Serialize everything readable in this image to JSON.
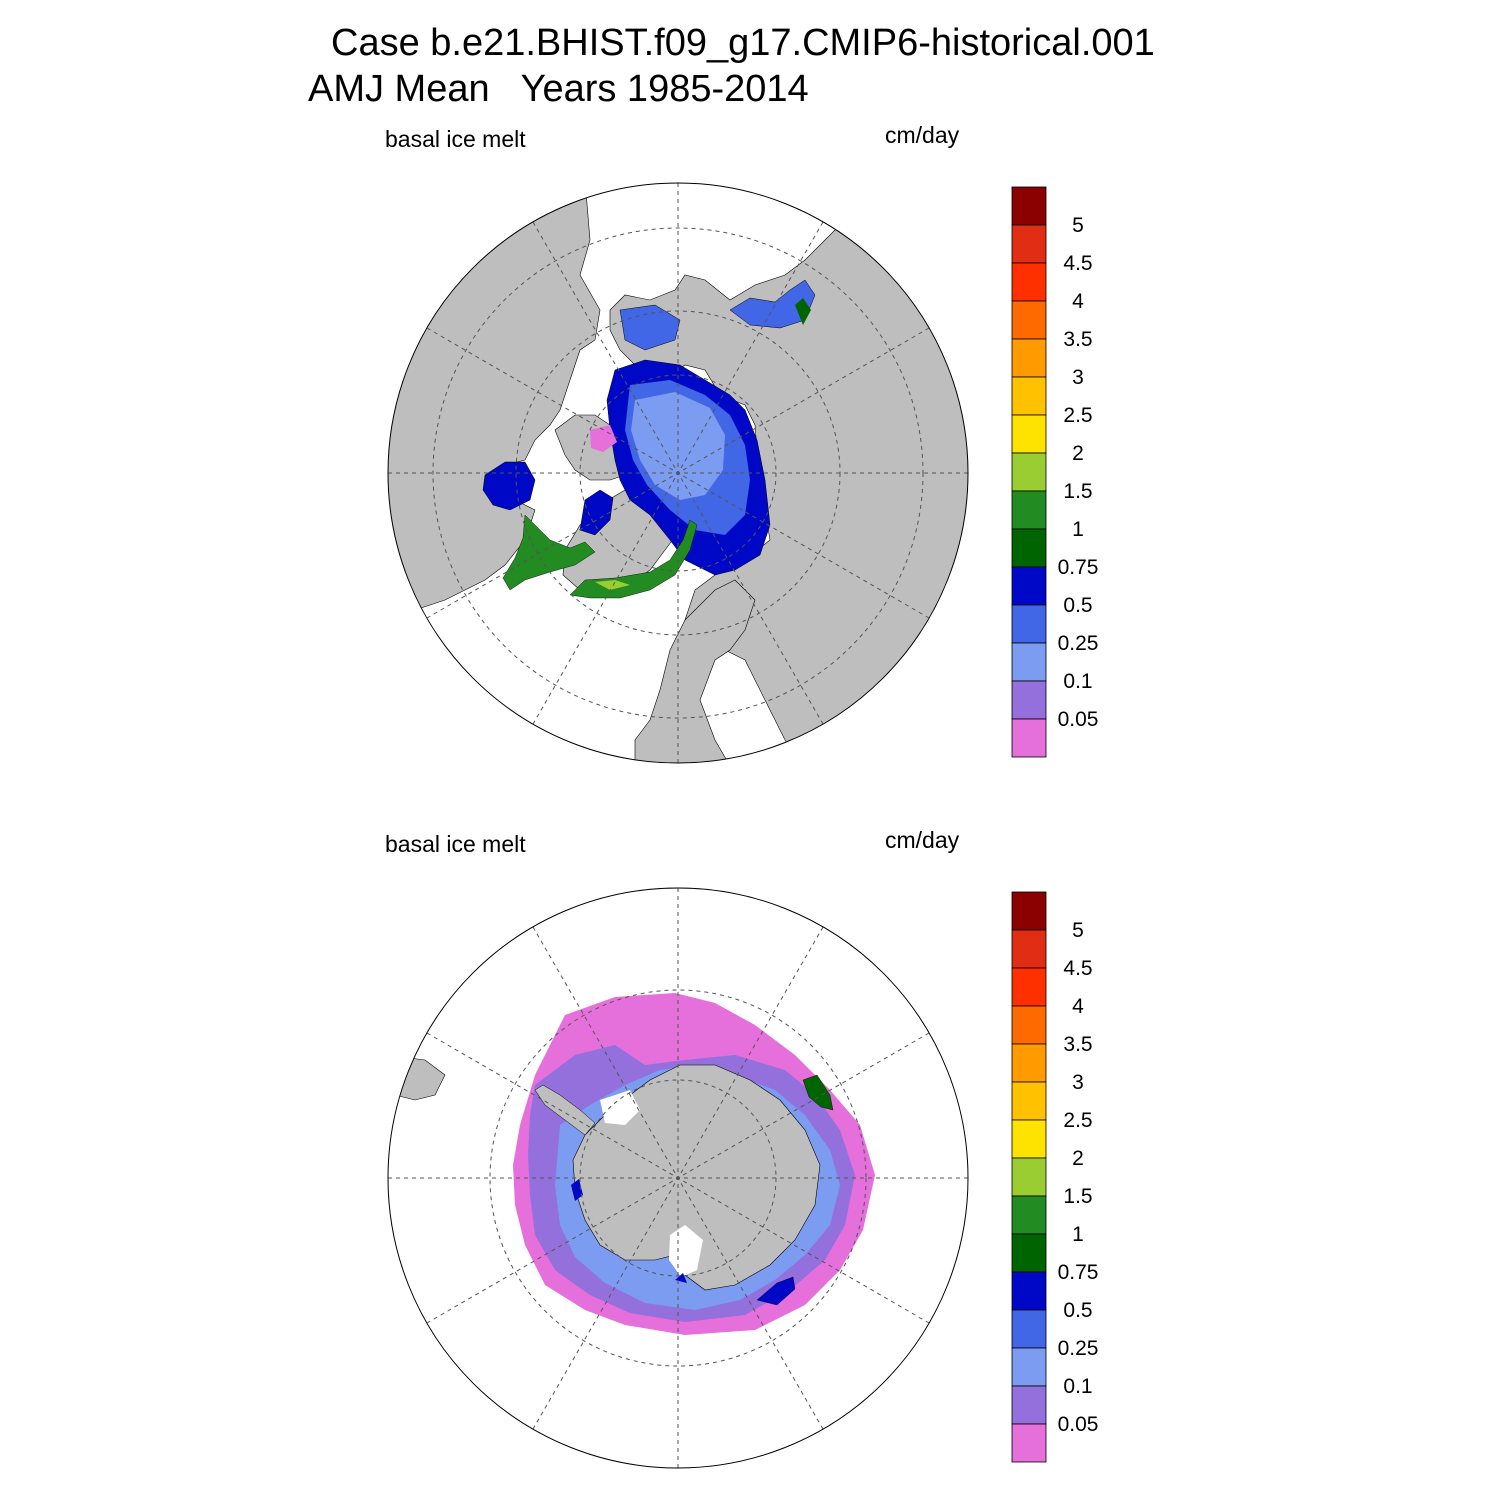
{
  "title": {
    "line1": "Case b.e21.BHIST.f09_g17.CMIP6-historical.001",
    "line2": "AMJ Mean   Years 1985-2014"
  },
  "panels": [
    {
      "id": "north",
      "hemisphere": "Arctic (north polar stereographic)",
      "variable_label": "basal ice melt",
      "units_label": "cm/day"
    },
    {
      "id": "south",
      "hemisphere": "Antarctic (south polar stereographic)",
      "variable_label": "basal ice melt",
      "units_label": "cm/day"
    }
  ],
  "colors": {
    "land": "#bebebe",
    "map_border": "#000000",
    "grid": "#555555"
  },
  "chart_data": {
    "type": "heatmap",
    "colorbar": {
      "levels": [
        "0.05",
        "0.1",
        "0.25",
        "0.5",
        "0.75",
        "1",
        "1.5",
        "2",
        "2.5",
        "3",
        "3.5",
        "4",
        "4.5",
        "5"
      ],
      "colors": [
        "#e56fdb",
        "#9370db",
        "#7b9cf0",
        "#4166e6",
        "#0008c8",
        "#006400",
        "#228b22",
        "#9acd32",
        "#ffe300",
        "#ffc100",
        "#ff9b00",
        "#ff6a00",
        "#ff3000",
        "#e02d13",
        "#8b0000"
      ]
    },
    "units": "cm/day"
  }
}
